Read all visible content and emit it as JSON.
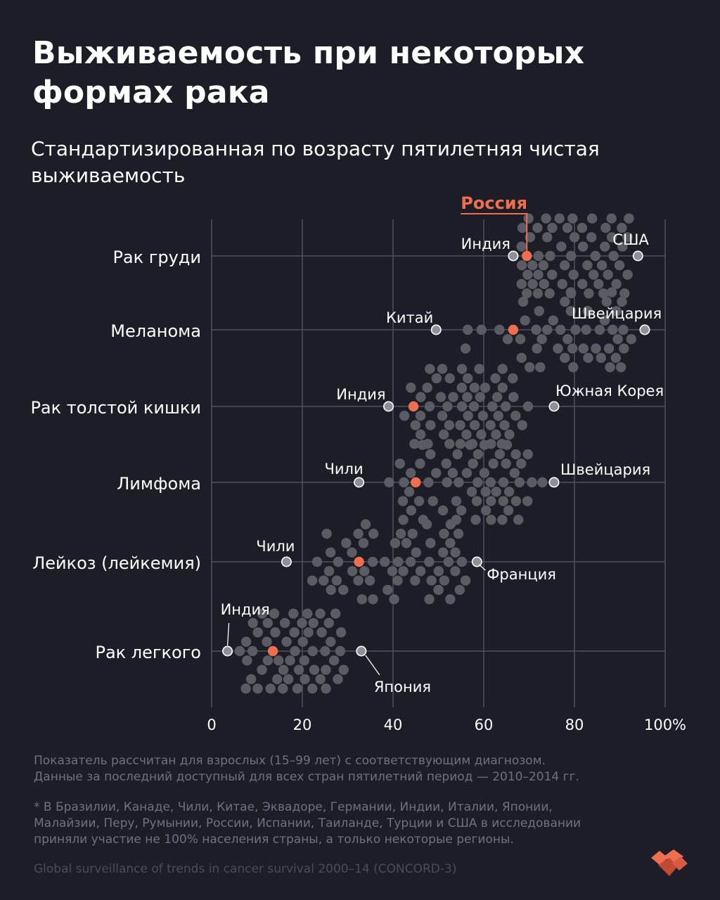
{
  "title_lines": [
    "Выживаемость при некоторых",
    "формах рака"
  ],
  "subtitle_lines": [
    "Стандартизированная по возрасту пятилетняя чистая",
    "выживаемость"
  ],
  "colors": {
    "background": "#1c1d26",
    "dot": "#5a5b63",
    "russia": "#ee6e50",
    "highlight_dot": "#8e9099",
    "grid": "#4e505c",
    "text": "#ffffff",
    "note": "#6f7180",
    "source": "#4a4c58"
  },
  "chart_data": {
    "type": "beeswarm",
    "title": "Выживаемость при некоторых формах рака",
    "subtitle": "Стандартизированная по возрасту пятилетняя чистая выживаемость",
    "x_ticks": [
      "0",
      "20",
      "40",
      "60",
      "80",
      "100%"
    ],
    "x_tick_values": [
      0,
      20,
      40,
      60,
      80,
      100
    ],
    "xlim": [
      0,
      100
    ],
    "legend_label": "Россия",
    "categories": [
      {
        "name": "Рак груди",
        "russia": 69.5,
        "low": {
          "country": "Индия",
          "value": 66.5
        },
        "high": {
          "country": "США",
          "value": 94
        },
        "distribution": {
          "min": 66,
          "max": 95,
          "peak": 85,
          "n": 62
        }
      },
      {
        "name": "Меланома",
        "russia": 66.5,
        "low": {
          "country": "Китай",
          "value": 49.5
        },
        "high": {
          "country": "Швейцария",
          "value": 95.5
        },
        "distribution": {
          "min": 49,
          "max": 96,
          "peak": 88,
          "n": 48
        }
      },
      {
        "name": "Рак толстой кишки",
        "russia": 44.5,
        "low": {
          "country": "Индия",
          "value": 39
        },
        "high": {
          "country": "Южная Корея",
          "value": 75.5
        },
        "distribution": {
          "min": 38,
          "max": 76,
          "peak": 62,
          "n": 58
        }
      },
      {
        "name": "Лимфома",
        "russia": 45,
        "low": {
          "country": "Чили",
          "value": 32.5
        },
        "high": {
          "country": "Швейцария",
          "value": 75.5
        },
        "distribution": {
          "min": 32,
          "max": 76,
          "peak": 66,
          "n": 60
        }
      },
      {
        "name": "Лейкоз (лейкемия)",
        "russia": 32.5,
        "low": {
          "country": "Чили",
          "value": 16.5
        },
        "high": {
          "country": "Франция",
          "value": 58.5
        },
        "distribution": {
          "min": 16,
          "max": 59,
          "peak": 50,
          "n": 58
        }
      },
      {
        "name": "Рак легкого",
        "russia": 13.5,
        "low": {
          "country": "Индия",
          "value": 3.5
        },
        "high": {
          "country": "Япония",
          "value": 33
        },
        "distribution": {
          "min": 3,
          "max": 33,
          "peak": 16,
          "n": 54
        }
      }
    ]
  },
  "notes": {
    "note1_lines": [
      "Показатель рассчитан для взрослых (15–99 лет) с соответствующим диагнозом.",
      "Данные за последний доступный для всех стран пятилетний период — 2010–2014 гг."
    ],
    "note2_lines": [
      "* В Бразилии, Канаде, Чили, Китае, Эквадоре, Германии, Индии, Италии, Японии,",
      "Малайзии, Перу, Румынии, России, Испании, Таиланде, Турции и США в исследовании",
      "приняли участие не 100% населения страны, а только некоторые регионы."
    ],
    "source": "Global surveillance of trends in cancer survival 2000–14 (CONCORD-3)"
  },
  "logo_icon": "brand-heart-icon"
}
